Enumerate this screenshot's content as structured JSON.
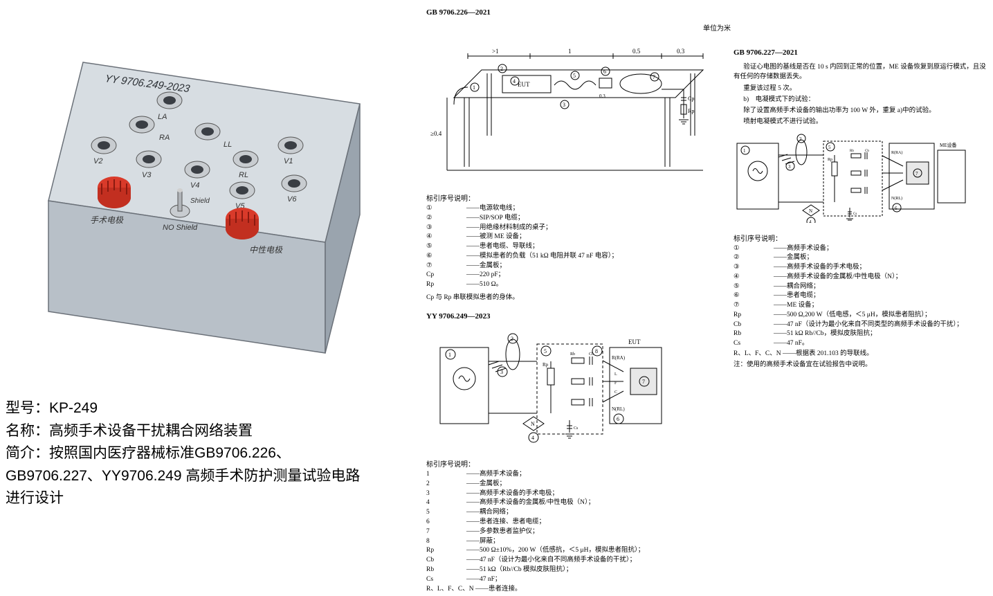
{
  "device": {
    "panel_label": "YY 9706.249-2023",
    "terminals_top": [
      "LA"
    ],
    "terminals_row2": [
      "RA",
      "LL"
    ],
    "terminals_row3": [
      "V2",
      "V3",
      "V4",
      "RL",
      "V1"
    ],
    "terminals_row4": [
      "V5",
      "V6"
    ],
    "switch_label_top": "Shield",
    "switch_label_bottom": "NO Shield",
    "left_red_label": "手术电极",
    "right_red_label": "中性电极",
    "body_color": "#b8c0c8",
    "top_color": "#d7dde2",
    "side_color": "#9aa4ae",
    "knob_color": "#d93a2a",
    "terminal_outer": "#c8ccd0",
    "terminal_inner": "#3a3e44"
  },
  "product": {
    "model_label": "型号：",
    "model": "KP-249",
    "name_label": "名称：",
    "name": "高频手术设备干扰耦合网络装置",
    "desc_label": "简介：",
    "desc_line1": "按照国内医疗器械标准GB9706.226、",
    "desc_line2": "GB9706.227、YY9706.249 高频手术防护测量试验电路",
    "desc_line3": "进行设计"
  },
  "mid": {
    "std_top": "GB 9706.226—2021",
    "unit": "单位为米",
    "dims": [
      ">1",
      "1",
      "0.5",
      "0.3"
    ],
    "eut_label": "EUT",
    "height_label": "≥0.4",
    "cp_label": "Cp",
    "rp_label": "Rp",
    "legend_title": "标引序号说明：",
    "legend1": [
      {
        "n": "①",
        "t": "——电源软电线；"
      },
      {
        "n": "②",
        "t": "——SIP/SOP 电缆；"
      },
      {
        "n": "③",
        "t": "——用绝缘材料制成的桌子；"
      },
      {
        "n": "④",
        "t": "——被测 ME 设备；"
      },
      {
        "n": "⑤",
        "t": "——患者电缆、导联线；"
      },
      {
        "n": "⑥",
        "t": "——模拟患者的负载（51 kΩ 电阻并联 47 nF 电容）；"
      },
      {
        "n": "⑦",
        "t": "——金属板；"
      },
      {
        "n": "Cp",
        "t": "——220 pF；"
      },
      {
        "n": "Rp",
        "t": "——510 Ω。"
      }
    ],
    "legend1_tail": "Cp 与 Rp 串联模拟患者的身体。",
    "std_mid": "YY 9706.249—2023",
    "legend2_title": "标引序号说明：",
    "legend2": [
      {
        "n": "1",
        "t": "——高频手术设备；"
      },
      {
        "n": "2",
        "t": "——金属板；"
      },
      {
        "n": "3",
        "t": "——高频手术设备的手术电极；"
      },
      {
        "n": "4",
        "t": "——高频手术设备的金属板/中性电极（N）；"
      },
      {
        "n": "5",
        "t": "——耦合网络；"
      },
      {
        "n": "6",
        "t": "——患者连接、患者电缆；"
      },
      {
        "n": "7",
        "t": "——多参数患者监护仪；"
      },
      {
        "n": "8",
        "t": "——屏蔽；"
      },
      {
        "n": "Rp",
        "t": "——500 Ω±10%，200 W（低感抗，＜5 μH，模拟患者阻抗）；"
      },
      {
        "n": "Cb",
        "t": "——47 nF（设计为最小化来自不同高频手术设备的干扰）；"
      },
      {
        "n": "Rb",
        "t": "——51 kΩ（Rb//Cb 模拟皮肤阻抗）；"
      },
      {
        "n": "Cs",
        "t": "——47 nF；"
      }
    ],
    "legend2_tail": "R、L、F、C、N ——患者连接。"
  },
  "right": {
    "std": "GB 9706.227—2021",
    "para1": "验证心电图的基线是否在 10 s 内回到正常的位置，ME 设备恢复到原运行模式，且没有任何的存储数据丢失。",
    "para2": "重复该过程 5 次。",
    "para3": "b)　电凝模式下的试验：",
    "para4": "除了设置高频手术设备的输出功率为 100 W 外，重复 a)中的试验。",
    "para5": "喷射电凝模式不进行试验。",
    "schematic_labels": [
      "①",
      "②",
      "③",
      "④",
      "⑤",
      "⑥",
      "⑦",
      "R(RA)",
      "N(RL)",
      "ME设备",
      "N",
      "Rp",
      "Rb",
      "Cb",
      "Cs",
      "L",
      "F",
      "C"
    ],
    "legend_title": "标引序号说明：",
    "legend": [
      {
        "n": "①",
        "t": "——高频手术设备；"
      },
      {
        "n": "②",
        "t": "——金属板；"
      },
      {
        "n": "③",
        "t": "——高频手术设备的手术电极；"
      },
      {
        "n": "④",
        "t": "——高频手术设备的金属板/中性电极（N）；"
      },
      {
        "n": "⑤",
        "t": "——耦合网络；"
      },
      {
        "n": "⑥",
        "t": "——患者电缆；"
      },
      {
        "n": "⑦",
        "t": "——ME 设备；"
      },
      {
        "n": "Rp",
        "t": "——500 Ω,200 W（低电感，＜5 μH，模拟患者阻抗）；"
      },
      {
        "n": "Cb",
        "t": "——47 nF（设计为最小化来自不同类型的高频手术设备的干扰）；"
      },
      {
        "n": "Rb",
        "t": "——51 kΩ Rb//Cb，模拟皮肤阻抗；"
      },
      {
        "n": "Cs",
        "t": "——47 nF。"
      }
    ],
    "legend_tail1": "R、L、F、C、N ——根据表 201.103 的导联线。",
    "legend_tail2": "注：使用的高频手术设备宜在试验报告中说明。"
  },
  "colors": {
    "bg": "#ffffff",
    "text": "#000000",
    "line": "#000000"
  }
}
